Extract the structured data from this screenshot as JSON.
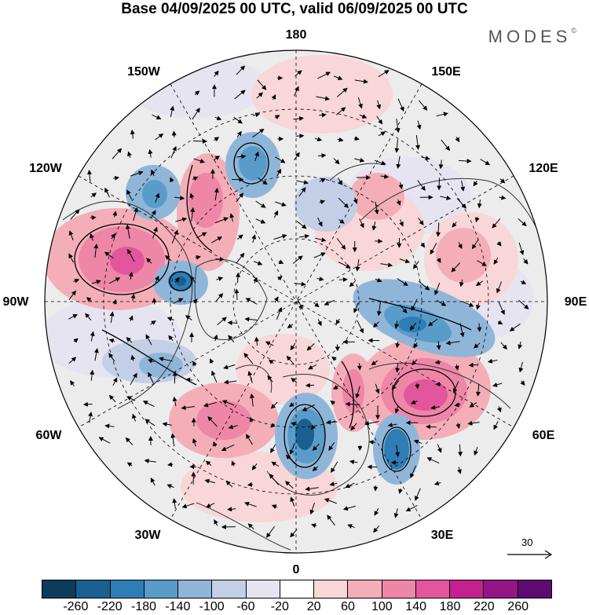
{
  "title": "Base 04/09/2025 00 UTC, valid 06/09/2025 00 UTC",
  "brand": "MODES",
  "brand_mark": "©",
  "longitude_labels": [
    {
      "id": "lon-180",
      "text": "180"
    },
    {
      "id": "lon-150w",
      "text": "150W"
    },
    {
      "id": "lon-150e",
      "text": "150E"
    },
    {
      "id": "lon-120w",
      "text": "120W"
    },
    {
      "id": "lon-120e",
      "text": "120E"
    },
    {
      "id": "lon-90w",
      "text": "90W"
    },
    {
      "id": "lon-90e",
      "text": "90E"
    },
    {
      "id": "lon-60w",
      "text": "60W"
    },
    {
      "id": "lon-60e",
      "text": "60E"
    },
    {
      "id": "lon-30w",
      "text": "30W"
    },
    {
      "id": "lon-30e",
      "text": "30E"
    },
    {
      "id": "lon-0",
      "text": "0"
    }
  ],
  "reference_vector": {
    "value": "30"
  },
  "colorbar": {
    "colors": [
      "#0d3b5c",
      "#1a5f8f",
      "#2e7db5",
      "#5a9cc9",
      "#8fb6d9",
      "#c2cfe6",
      "#e6e4f0",
      "#ffffff",
      "#f9d6d8",
      "#f4aeb8",
      "#ee86a8",
      "#e2569e",
      "#c4218f",
      "#941585",
      "#5e0a73"
    ],
    "tick_labels": [
      "-260",
      "-220",
      "-180",
      "-140",
      "-100",
      "-60",
      "-20",
      "20",
      "60",
      "100",
      "140",
      "180",
      "220",
      "260"
    ]
  }
}
